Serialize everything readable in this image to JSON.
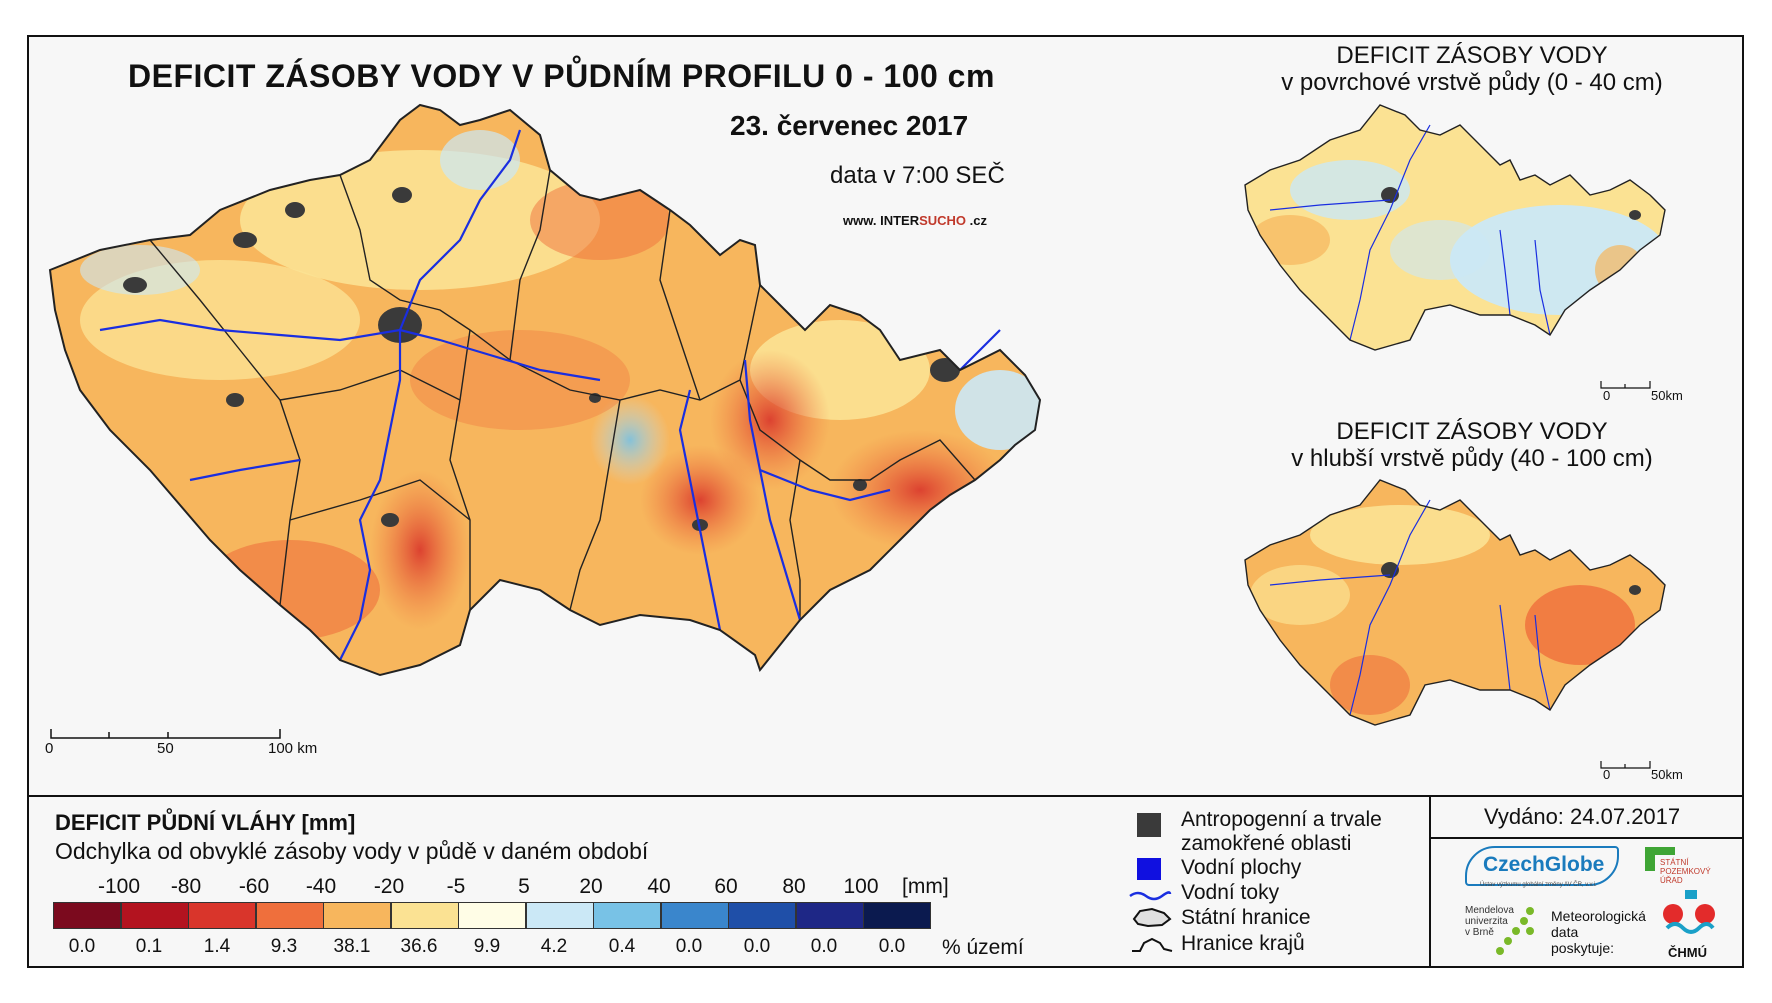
{
  "main_map": {
    "title": "DEFICIT ZÁSOBY VODY V PŮDNÍM PROFILU 0 - 100 cm",
    "date": "23. červenec 2017",
    "data_time": "data v 7:00 SEČ",
    "website_prefix": "www. INTER",
    "website_highlight": "SUCHO",
    "website_suffix": " .cz",
    "scale_labels": [
      "0",
      "50",
      "100 km"
    ]
  },
  "inset_top": {
    "title_line1": "DEFICIT ZÁSOBY VODY",
    "title_line2": "v povrchové vrstvě půdy (0 - 40 cm)",
    "scale_labels": [
      "0",
      "50km"
    ]
  },
  "inset_bottom": {
    "title_line1": "DEFICIT ZÁSOBY VODY",
    "title_line2": "v hlubší vrstvě půdy (40 - 100 cm)",
    "scale_labels": [
      "0",
      "50km"
    ]
  },
  "legend": {
    "title": "DEFICIT PŮDNÍ VLÁHY [mm]",
    "subtitle": "Odchylka od obvyklé zásoby vody v půdě v daném období",
    "unit": "[mm]",
    "pct_unit": "% území",
    "breaks": [
      "-100",
      "-80",
      "-60",
      "-40",
      "-20",
      "-5",
      "5",
      "20",
      "40",
      "60",
      "80",
      "100"
    ],
    "classes": [
      {
        "color": "#7b0a1e",
        "pct": "0.0"
      },
      {
        "color": "#b3131f",
        "pct": "0.1"
      },
      {
        "color": "#d9352b",
        "pct": "1.4"
      },
      {
        "color": "#ef6f3c",
        "pct": "9.3"
      },
      {
        "color": "#f7b65d",
        "pct": "38.1"
      },
      {
        "color": "#fbe293",
        "pct": "36.6"
      },
      {
        "color": "#fffde6",
        "pct": "9.9"
      },
      {
        "color": "#cbe8f6",
        "pct": "4.2"
      },
      {
        "color": "#78c2e6",
        "pct": "0.4"
      },
      {
        "color": "#3a86cc",
        "pct": "0.0"
      },
      {
        "color": "#1f4fa8",
        "pct": "0.0"
      },
      {
        "color": "#1e2786",
        "pct": "0.0"
      },
      {
        "color": "#0b1a4f",
        "pct": "0.0"
      }
    ]
  },
  "symbols": {
    "anthropogenic_line1": "Antropogenní a trvale",
    "anthropogenic_line2": "zamokřené oblasti",
    "water_bodies": "Vodní plochy",
    "rivers": "Vodní toky",
    "state_border": "Státní hranice",
    "region_border": "Hranice krajů"
  },
  "issued": "Vydáno: 24.07.2017",
  "logos": {
    "czechglobe": "CzechGlobe",
    "czechglobe_sub": "Ústav výzkumu globální změny AV ČR, v.v.i.",
    "spu_line1": "STÁTNÍ",
    "spu_line2": "POZEMKOVÝ",
    "spu_line3": "ÚŘAD",
    "mendel_line1": "Mendelova",
    "mendel_line2": "univerzita",
    "mendel_line3": "v Brně",
    "meteo_line1": "Meteorologická",
    "meteo_line2": "data",
    "meteo_line3": "poskytuje:",
    "chmu": "ČHMÚ"
  },
  "colors": {
    "anthropogenic": "#3a3a3a",
    "water": "#1010e0",
    "river": "#1a2ee0"
  }
}
